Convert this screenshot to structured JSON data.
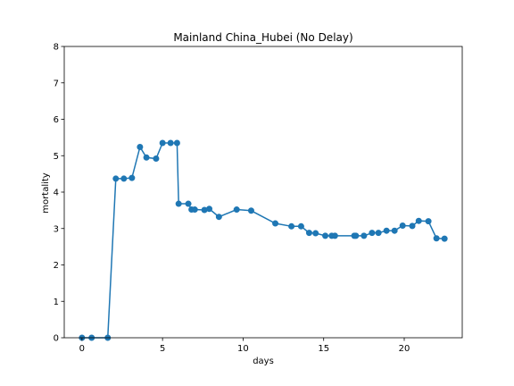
{
  "chart_data": {
    "type": "line",
    "title": "Mainland China_Hubei (No Delay)",
    "xlabel": "days",
    "ylabel": "mortality",
    "xlim": [
      -1.1,
      23.6
    ],
    "ylim": [
      0,
      8
    ],
    "x_ticks": [
      0,
      5,
      10,
      15,
      20
    ],
    "y_ticks": [
      0,
      1,
      2,
      3,
      4,
      5,
      6,
      7,
      8
    ],
    "grid": false,
    "colors": {
      "series": "#1f77b4",
      "axes": "#000000",
      "background": "#ffffff"
    },
    "series": [
      {
        "marker": "circle",
        "x": [
          0.0,
          0.6,
          1.6,
          2.1,
          2.6,
          3.1,
          3.6,
          4.0,
          4.6,
          5.0,
          5.5,
          5.9,
          6.0,
          6.6,
          6.8,
          7.0,
          7.6,
          7.9,
          8.5,
          9.6,
          10.5,
          12.0,
          13.0,
          13.6,
          14.1,
          14.5,
          15.1,
          15.5,
          15.7,
          16.9,
          17.0,
          17.5,
          18.0,
          18.4,
          18.9,
          19.4,
          19.9,
          20.5,
          20.9,
          21.5,
          22.0,
          22.5
        ],
        "y": [
          0.0,
          0.0,
          0.0,
          4.37,
          4.37,
          4.39,
          5.24,
          4.95,
          4.92,
          5.35,
          5.35,
          5.35,
          3.68,
          3.68,
          3.52,
          3.52,
          3.51,
          3.54,
          3.32,
          3.52,
          3.49,
          3.14,
          3.06,
          3.06,
          2.88,
          2.87,
          2.8,
          2.8,
          2.8,
          2.8,
          2.8,
          2.8,
          2.88,
          2.88,
          2.94,
          2.94,
          3.08,
          3.07,
          3.21,
          3.2,
          2.73,
          2.72
        ]
      }
    ]
  }
}
